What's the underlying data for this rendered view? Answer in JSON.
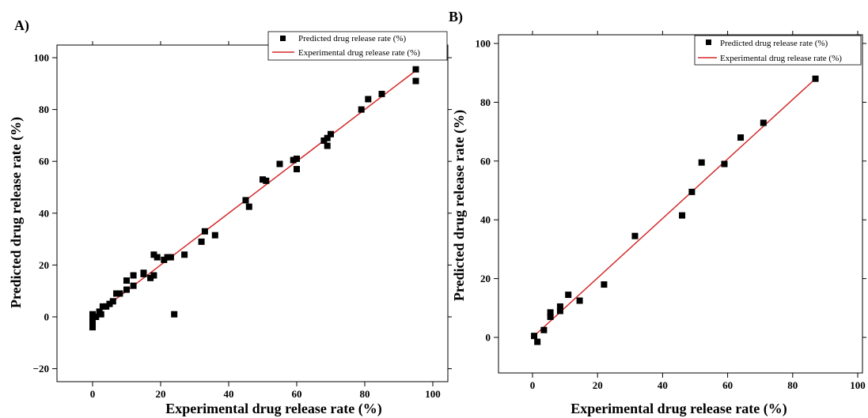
{
  "chart_data": [
    {
      "panel_label": "A)",
      "type": "scatter",
      "xlabel": "Experimental drug release rate (%)",
      "ylabel": "Predicted drug release rate (%)",
      "xlim": [
        -10,
        100
      ],
      "ylim": [
        -20,
        100
      ],
      "xticks": [
        0,
        20,
        40,
        60,
        80,
        100
      ],
      "yticks": [
        -20,
        0,
        20,
        40,
        60,
        80,
        100
      ],
      "xtick_labels": [
        "0",
        "20",
        "40",
        "60",
        "80",
        "100"
      ],
      "ytick_labels": [
        "−20",
        "0",
        "20",
        "40",
        "60",
        "80",
        "100"
      ],
      "grid": false,
      "legend_position": "top-right",
      "series": [
        {
          "name": "Predicted drug release rate (%)",
          "kind": "scatter",
          "color": "#000000",
          "marker": "square",
          "points": [
            [
              0,
              1
            ],
            [
              0,
              -1
            ],
            [
              0,
              -2
            ],
            [
              0,
              -3
            ],
            [
              0,
              -4
            ],
            [
              1,
              0
            ],
            [
              2,
              2
            ],
            [
              2.5,
              1
            ],
            [
              3,
              4
            ],
            [
              4,
              4
            ],
            [
              5,
              5
            ],
            [
              6,
              6
            ],
            [
              7,
              9
            ],
            [
              8,
              9
            ],
            [
              10,
              10.5
            ],
            [
              10,
              14
            ],
            [
              12,
              16
            ],
            [
              12,
              12
            ],
            [
              15,
              17
            ],
            [
              15,
              16.5
            ],
            [
              17,
              15
            ],
            [
              18,
              16
            ],
            [
              18,
              24
            ],
            [
              19,
              23
            ],
            [
              21,
              22
            ],
            [
              22,
              23
            ],
            [
              23,
              23
            ],
            [
              24,
              1
            ],
            [
              27,
              24
            ],
            [
              32,
              29
            ],
            [
              33,
              33
            ],
            [
              36,
              31.5
            ],
            [
              45,
              45
            ],
            [
              46,
              42.5
            ],
            [
              50,
              53
            ],
            [
              51,
              52.5
            ],
            [
              55,
              59
            ],
            [
              59,
              60.5
            ],
            [
              60,
              61
            ],
            [
              60,
              57
            ],
            [
              68,
              68
            ],
            [
              69,
              69
            ],
            [
              69,
              66
            ],
            [
              70,
              70.5
            ],
            [
              79,
              80
            ],
            [
              81,
              84
            ],
            [
              85,
              86
            ],
            [
              95,
              95.5
            ],
            [
              95,
              91
            ]
          ]
        },
        {
          "name": "Experimental drug release rate (%)",
          "kind": "line",
          "color": "#d42a2a",
          "points": [
            [
              0,
              0
            ],
            [
              95,
              95
            ]
          ]
        }
      ]
    },
    {
      "panel_label": "B)",
      "type": "scatter",
      "xlabel": "Experimental drug release rate (%)",
      "ylabel": "Predicted drug release rate (%)",
      "xlim": [
        -10,
        100
      ],
      "ylim": [
        -10,
        100
      ],
      "xticks": [
        0,
        20,
        40,
        60,
        80,
        100
      ],
      "yticks": [
        0,
        20,
        40,
        60,
        80,
        100
      ],
      "xtick_labels": [
        "0",
        "20",
        "40",
        "60",
        "80",
        "100"
      ],
      "ytick_labels": [
        "0",
        "20",
        "40",
        "60",
        "80",
        "100"
      ],
      "grid": false,
      "legend_position": "top-right",
      "series": [
        {
          "name": "Predicted drug release rate (%)",
          "kind": "scatter",
          "color": "#000000",
          "marker": "square",
          "points": [
            [
              0.5,
              0.5
            ],
            [
              1.5,
              -1.5
            ],
            [
              3.5,
              2.5
            ],
            [
              5.5,
              8.5
            ],
            [
              5.5,
              7
            ],
            [
              8.5,
              10.5
            ],
            [
              8.5,
              9
            ],
            [
              11,
              14.5
            ],
            [
              14.5,
              12.5
            ],
            [
              22,
              18
            ],
            [
              31.5,
              34.5
            ],
            [
              46,
              41.5
            ],
            [
              49,
              49.5
            ],
            [
              52,
              59.5
            ],
            [
              59,
              59
            ],
            [
              64,
              68
            ],
            [
              71,
              73
            ],
            [
              87,
              88
            ]
          ]
        },
        {
          "name": "Experimental drug release rate (%)",
          "kind": "line",
          "color": "#d42a2a",
          "points": [
            [
              0,
              0
            ],
            [
              87,
              88
            ]
          ]
        }
      ]
    }
  ]
}
